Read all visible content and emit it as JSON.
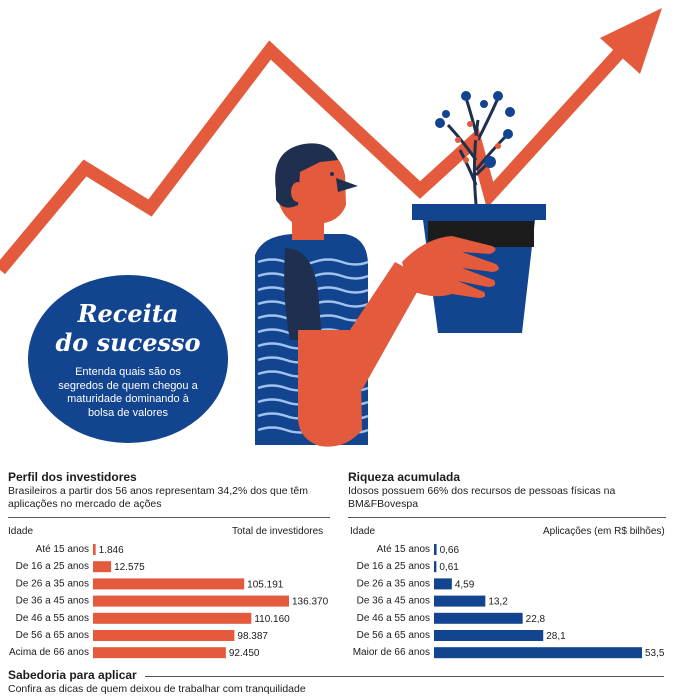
{
  "headline": {
    "title_line1": "Receita",
    "title_line2": "do sucesso",
    "subtitle": "Entenda quais são os segredos de quem chegou a maturidade dominando à bolsa de valores"
  },
  "colors": {
    "orange": "#e35a3c",
    "navy": "#12448f",
    "dark": "#1f2f4f",
    "gray_text": "#333333"
  },
  "chart_data": [
    {
      "type": "bar",
      "orientation": "horizontal",
      "title": "Perfil dos investidores",
      "subtitle": "Brasileiros a partir dos 56 anos representam 34,2% dos que têm aplicações no mercado de ações",
      "ylabel": "Idade",
      "xlabel": "Total de investidores",
      "categories": [
        "Até 15 anos",
        "De 16 a 25 anos",
        "De 26 a 35 anos",
        "De 36 a 45 anos",
        "De 46 a 55 anos",
        "De 56 a 65 anos",
        "Acima de 66 anos"
      ],
      "values": [
        1846,
        12575,
        105191,
        136370,
        110160,
        98387,
        92450
      ],
      "value_labels": [
        "1.846",
        "12.575",
        "105.191",
        "136.370",
        "110.160",
        "98.387",
        "92.450"
      ],
      "color": "#e35a3c"
    },
    {
      "type": "bar",
      "orientation": "horizontal",
      "title": "Riqueza acumulada",
      "subtitle": "Idosos possuem 66% dos recursos de pessoas físicas na BM&FBovespa",
      "ylabel": "Idade",
      "xlabel": "Aplicações (em R$ bilhões)",
      "categories": [
        "Até 15 anos",
        "De 16 a 25 anos",
        "De 26 a 35 anos",
        "De 36 a 45 anos",
        "De 46 a 55 anos",
        "De 56 a 65 anos",
        "Maior de 66 anos"
      ],
      "values": [
        0.66,
        0.61,
        4.59,
        13.2,
        22.8,
        28.1,
        53.5
      ],
      "value_labels": [
        "0,66",
        "0,61",
        "4,59",
        "13,2",
        "22,8",
        "28,1",
        "53,5"
      ],
      "color": "#12448f"
    }
  ],
  "footer": {
    "title": "Sabedoria para aplicar",
    "subtitle": "Confira as dicas de quem deixou de trabalhar com tranquilidade"
  }
}
